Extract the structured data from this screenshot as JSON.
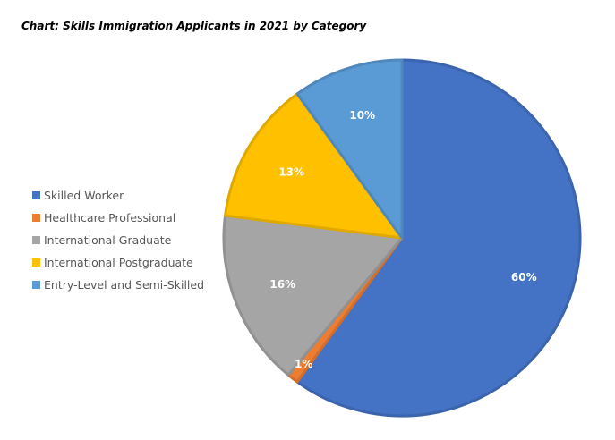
{
  "chart_data": {
    "type": "pie",
    "title": "Chart: Skills Immigration Applicants in 2021 by Category",
    "categories": [
      "Skilled Worker",
      "Healthcare Professional",
      "International Graduate",
      "International Postgraduate",
      "Entry-Level and Semi-Skilled"
    ],
    "values": [
      60,
      1,
      16,
      13,
      10
    ],
    "data_labels": [
      "60%",
      "1%",
      "16%",
      "13%",
      "10%"
    ],
    "colors": [
      "#4472C4",
      "#ED7D31",
      "#A5A5A5",
      "#FFC000",
      "#5B9BD5"
    ],
    "label_colors": [
      "#ffffff",
      "#ffffff",
      "#ffffff",
      "#ffffff",
      "#ffffff"
    ],
    "start_angle_degrees": 0,
    "direction": "clockwise",
    "legend_position": "left"
  }
}
